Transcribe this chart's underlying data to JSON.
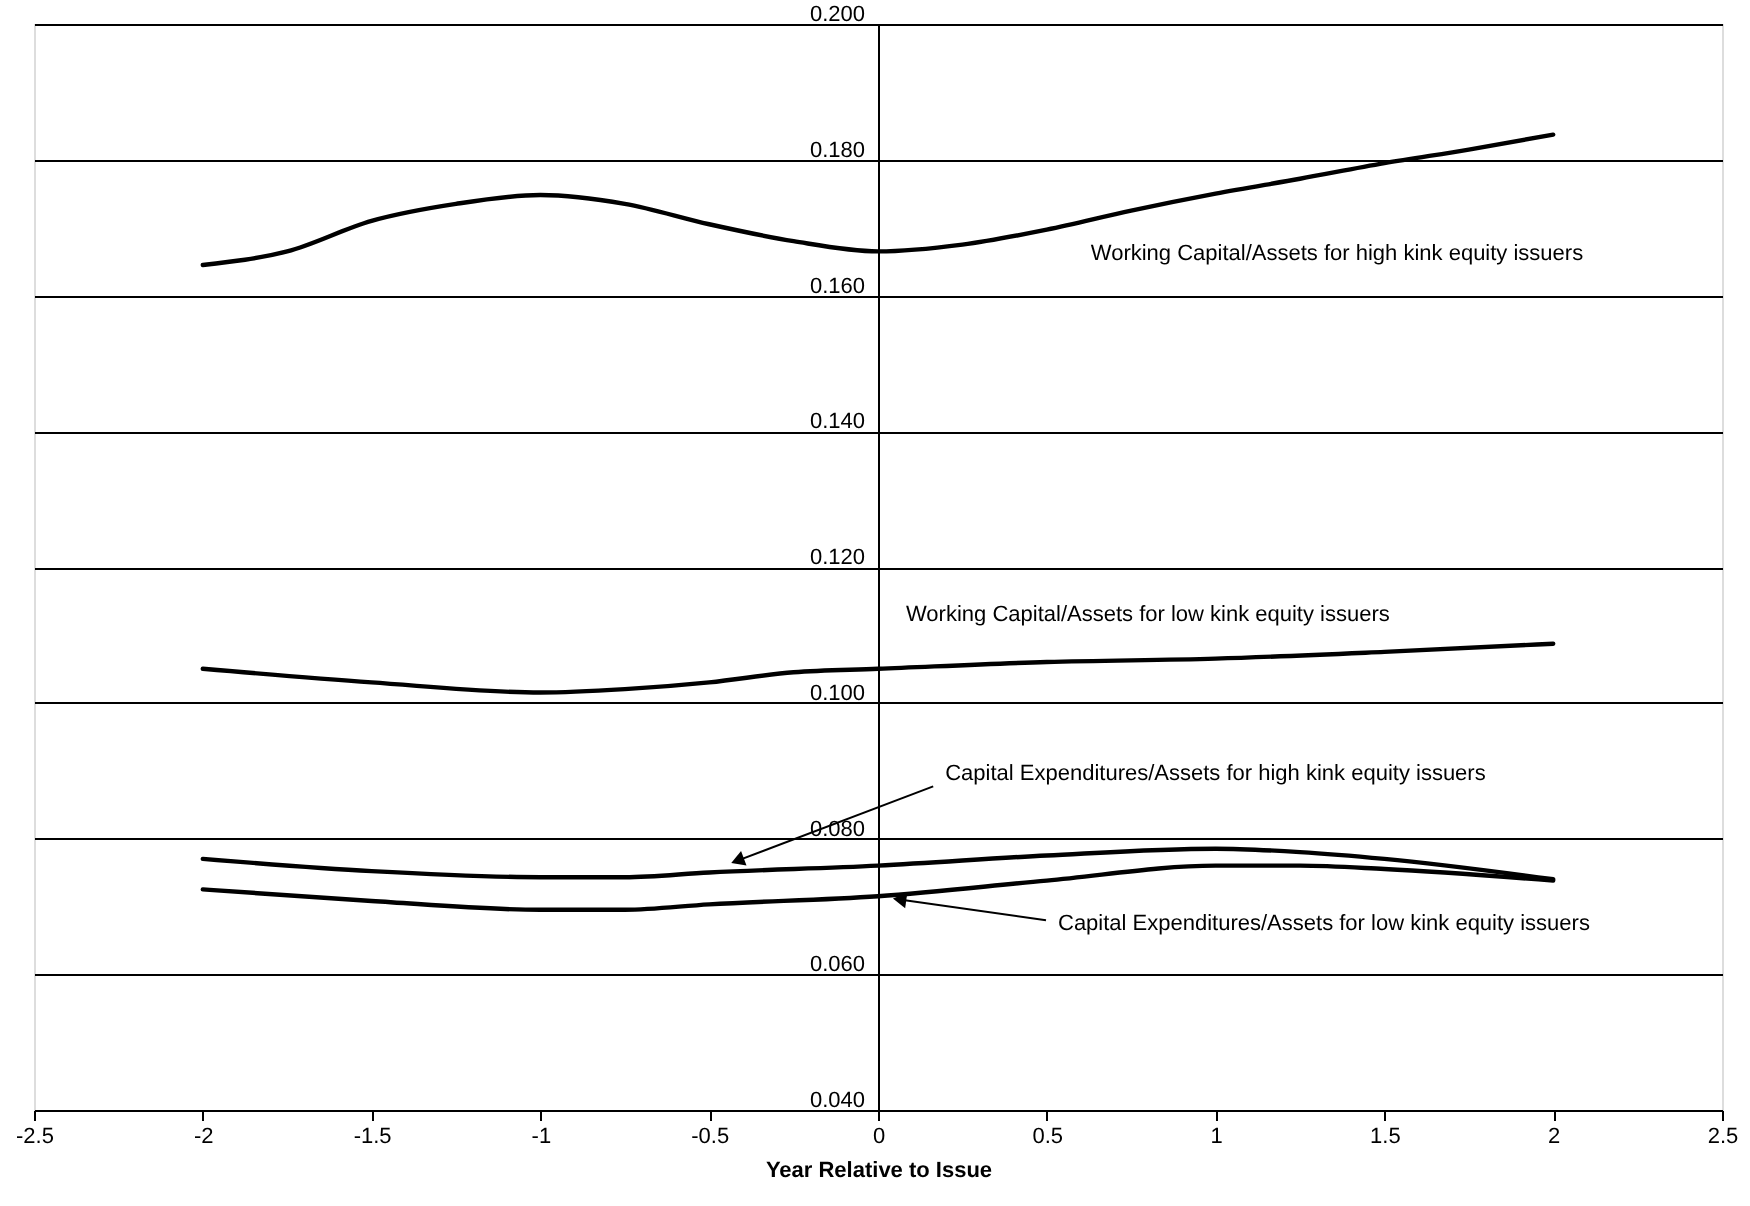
{
  "chart_data": {
    "type": "line",
    "xlabel": "Year Relative to Issue",
    "xlim": [
      -2.5,
      2.5
    ],
    "xticks": [
      -2.5,
      -2,
      -1.5,
      -1,
      -0.5,
      0,
      0.5,
      1,
      1.5,
      2,
      2.5
    ],
    "ylim": [
      0.04,
      0.2
    ],
    "yticks": [
      {
        "value": 0.04,
        "label": "0.040"
      },
      {
        "value": 0.06,
        "label": "0.060"
      },
      {
        "value": 0.08,
        "label": "0.080"
      },
      {
        "value": 0.1,
        "label": "0.100"
      },
      {
        "value": 0.12,
        "label": "0.120"
      },
      {
        "value": 0.14,
        "label": "0.140"
      },
      {
        "value": 0.16,
        "label": "0.160"
      },
      {
        "value": 0.18,
        "label": "0.180"
      },
      {
        "value": 0.2,
        "label": "0.200"
      }
    ],
    "grid": "y",
    "marker": "none",
    "line_style": "solid",
    "series": [
      {
        "name": "Working Capital/Assets for high kink equity issuers",
        "color": "#000000",
        "x": [
          -2,
          -1.75,
          -1.5,
          -1.25,
          -1,
          -0.75,
          -0.5,
          -0.25,
          0,
          0.25,
          0.5,
          0.75,
          1,
          1.25,
          1.5,
          1.75,
          2
        ],
        "values": [
          0.1645,
          0.1665,
          0.171,
          0.1735,
          0.1748,
          0.1735,
          0.1705,
          0.168,
          0.1665,
          0.1675,
          0.1697,
          0.1725,
          0.175,
          0.1772,
          0.1795,
          0.1815,
          0.1837
        ]
      },
      {
        "name": "Working Capital/Assets for low kink equity issuers",
        "color": "#000000",
        "x": [
          -2,
          -1.5,
          -1,
          -0.75,
          -0.5,
          -0.25,
          0,
          0.5,
          1,
          1.5,
          2
        ],
        "values": [
          0.105,
          0.103,
          0.1015,
          0.102,
          0.103,
          0.1045,
          0.105,
          0.106,
          0.1065,
          0.1075,
          0.1087
        ]
      },
      {
        "name": "Capital Expenditures/Assets for high kink equity issuers",
        "color": "#000000",
        "x": [
          -2,
          -1.5,
          -1,
          -0.75,
          -0.5,
          0,
          0.5,
          1,
          1.25,
          1.5,
          2
        ],
        "values": [
          0.077,
          0.0752,
          0.0743,
          0.0743,
          0.075,
          0.076,
          0.0775,
          0.0785,
          0.078,
          0.077,
          0.074
        ]
      },
      {
        "name": "Capital Expenditures/Assets for low kink equity issuers",
        "color": "#000000",
        "x": [
          -2,
          -1.5,
          -1,
          -0.75,
          -0.5,
          0,
          0.5,
          1,
          1.25,
          1.5,
          2
        ],
        "values": [
          0.0725,
          0.0708,
          0.0695,
          0.0695,
          0.0703,
          0.0715,
          0.0738,
          0.076,
          0.076,
          0.0755,
          0.0738
        ]
      }
    ]
  }
}
